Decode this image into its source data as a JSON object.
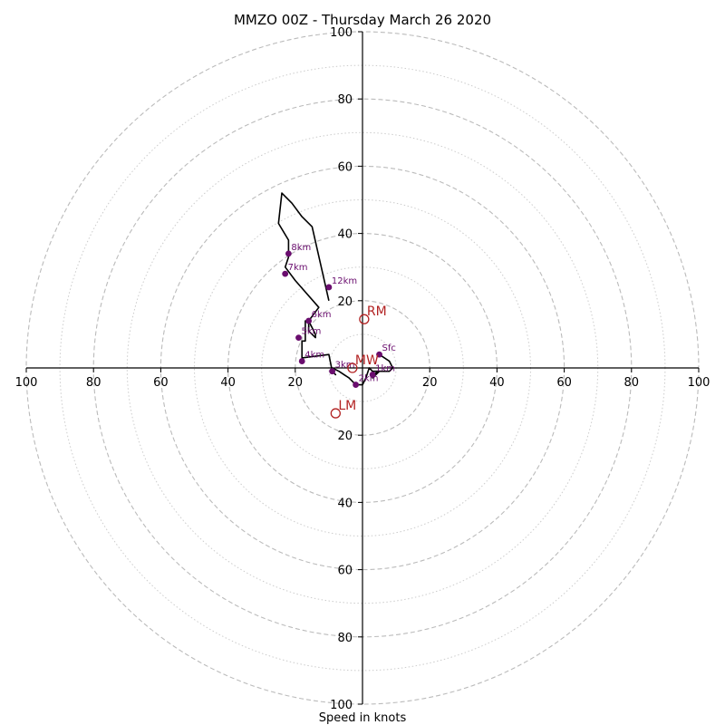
{
  "chart_data": {
    "type": "line",
    "title": "MMZO 00Z - Thursday March 26 2020",
    "xlabel": "Speed in knots",
    "ylabel": "",
    "xlim": [
      -100,
      100
    ],
    "ylim": [
      -100,
      100
    ],
    "rings_major": [
      20,
      40,
      60,
      80,
      100
    ],
    "rings_minor": [
      10,
      30,
      50,
      70,
      90
    ],
    "x_ticks": [
      -100,
      -80,
      -60,
      -40,
      -20,
      20,
      40,
      60,
      80,
      100
    ],
    "x_tick_labels": [
      "100",
      "80",
      "60",
      "40",
      "20",
      "20",
      "40",
      "60",
      "80",
      "100"
    ],
    "y_ticks": [
      100,
      80,
      60,
      40,
      20,
      -20,
      -40,
      -60,
      -80,
      -100
    ],
    "y_tick_labels": [
      "100",
      "80",
      "60",
      "40",
      "20",
      "20",
      "40",
      "60",
      "80",
      "100"
    ],
    "line_color": "#000000",
    "point_color": "#6a0d6e",
    "motion_color": "#b22222",
    "grid_color": "#bbbbbb",
    "trace": [
      [
        5,
        4
      ],
      [
        8,
        2
      ],
      [
        9,
        0
      ],
      [
        8,
        -1
      ],
      [
        5,
        -1
      ],
      [
        3,
        -2
      ],
      [
        3,
        -3
      ],
      [
        5,
        -1
      ],
      [
        3,
        -1
      ],
      [
        2,
        0
      ],
      [
        1,
        -3
      ],
      [
        0,
        -5
      ],
      [
        -2,
        -5
      ],
      [
        -4,
        -3
      ],
      [
        -7,
        -1
      ],
      [
        -9,
        0
      ],
      [
        -9,
        -1
      ],
      [
        -8,
        -2
      ],
      [
        -9,
        -1
      ],
      [
        -10,
        4
      ],
      [
        -18,
        3
      ],
      [
        -18,
        8
      ],
      [
        -17,
        8
      ],
      [
        -17,
        14
      ],
      [
        -16,
        14
      ],
      [
        -14,
        10
      ],
      [
        -14,
        9
      ],
      [
        -16,
        11
      ],
      [
        -16,
        14
      ],
      [
        -13,
        18
      ],
      [
        -20,
        26
      ],
      [
        -23,
        30
      ],
      [
        -22,
        33
      ],
      [
        -22,
        38
      ],
      [
        -25,
        43
      ],
      [
        -24,
        52
      ],
      [
        -21,
        49
      ],
      [
        -18,
        45
      ],
      [
        -15,
        42
      ],
      [
        -10,
        20
      ]
    ],
    "height_markers": [
      {
        "label": "Sfc",
        "x": 5,
        "y": 4
      },
      {
        "label": "1km",
        "x": 3,
        "y": -2
      },
      {
        "label": "2km",
        "x": -2,
        "y": -5
      },
      {
        "label": "3km",
        "x": -9,
        "y": -1
      },
      {
        "label": "4km",
        "x": -18,
        "y": 2
      },
      {
        "label": "5km",
        "x": -19,
        "y": 9
      },
      {
        "label": "6km",
        "x": -16,
        "y": 14
      },
      {
        "label": "7km",
        "x": -23,
        "y": 28
      },
      {
        "label": "8km",
        "x": -22,
        "y": 34
      },
      {
        "label": "12km",
        "x": -10,
        "y": 24
      }
    ],
    "storm_motion": [
      {
        "label": "RM",
        "x": 0.5,
        "y": 14.5
      },
      {
        "label": "MW",
        "x": -3,
        "y": 0
      },
      {
        "label": "LM",
        "x": -8,
        "y": -13.5
      }
    ]
  }
}
